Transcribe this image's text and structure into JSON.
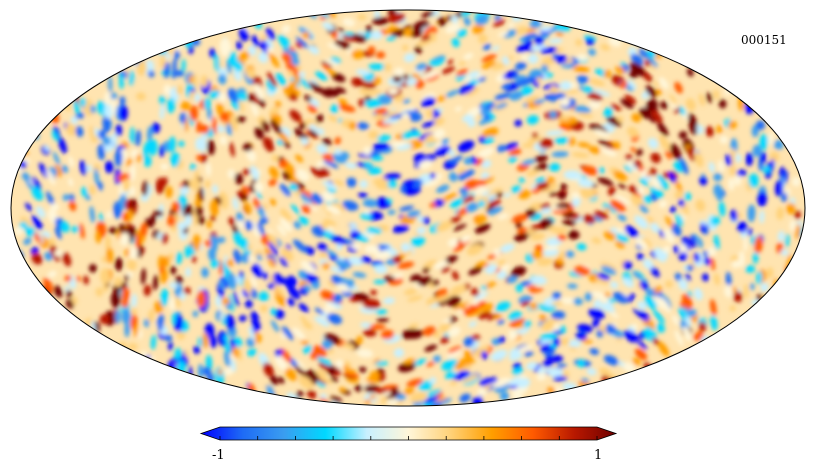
{
  "map_id": "000151",
  "chart_data": {
    "type": "heatmap",
    "projection": "mollweide",
    "title": "",
    "colorbar": {
      "min_label": "-1",
      "max_label": "1",
      "range": [
        -1,
        1
      ],
      "ticks": [
        -1,
        -0.8,
        -0.6,
        -0.4,
        -0.2,
        0,
        0.2,
        0.4,
        0.6,
        0.8,
        1
      ],
      "colormap": [
        "#0000ff",
        "#1e6bf5",
        "#3a9df0",
        "#00d8ff",
        "#c8f0ff",
        "#fff6d9",
        "#ffd27a",
        "#ff9f00",
        "#ff5a00",
        "#b81800",
        "#6e0000"
      ]
    }
  }
}
